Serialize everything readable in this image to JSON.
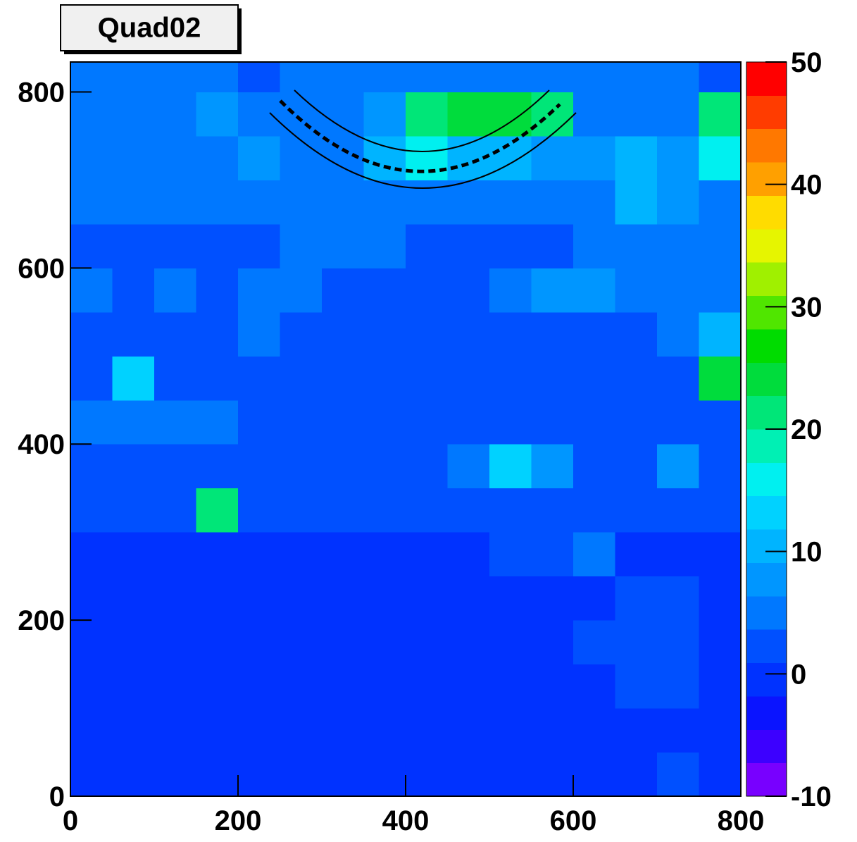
{
  "chart_data": {
    "type": "heatmap",
    "title": "Quad02",
    "xbins": [
      0,
      50,
      100,
      150,
      200,
      250,
      300,
      350,
      400,
      450,
      500,
      550,
      600,
      650,
      700,
      750,
      800
    ],
    "ybins": [
      0,
      50,
      100,
      150,
      200,
      250,
      300,
      350,
      400,
      450,
      500,
      550,
      600,
      650,
      700,
      750,
      800,
      834
    ],
    "z": [
      [
        0,
        0,
        0,
        0,
        0,
        0,
        0,
        0,
        0,
        0,
        0,
        0,
        0,
        0,
        1,
        0
      ],
      [
        0,
        0,
        0,
        0,
        0,
        0,
        0,
        0,
        0,
        0,
        0,
        0,
        0,
        0,
        0,
        0
      ],
      [
        0,
        0,
        0,
        0,
        0,
        0,
        0,
        0,
        0,
        0,
        0,
        0,
        0,
        1,
        1,
        0
      ],
      [
        0,
        0,
        0,
        0,
        0,
        0,
        0,
        0,
        0,
        0,
        0,
        0,
        1,
        2,
        2,
        0
      ],
      [
        0,
        0,
        0,
        0,
        0,
        0,
        0,
        0,
        0,
        0,
        0,
        0,
        0,
        1,
        1,
        0
      ],
      [
        0,
        0,
        0,
        0,
        0,
        0,
        0,
        0,
        0,
        0,
        1,
        1,
        4,
        0,
        0,
        0
      ],
      [
        1,
        1,
        2,
        20,
        1,
        1,
        1,
        1,
        1,
        1,
        1,
        1,
        1,
        1,
        1,
        1
      ],
      [
        1,
        1,
        1,
        1,
        1,
        2,
        2,
        3,
        3,
        5,
        12,
        8,
        2,
        3,
        8,
        1
      ],
      [
        4,
        4,
        4,
        4,
        3,
        3,
        3,
        3,
        3,
        2,
        2,
        3,
        3,
        3,
        3,
        3
      ],
      [
        3,
        12,
        3,
        3,
        3,
        3,
        3,
        3,
        3,
        3,
        3,
        3,
        3,
        3,
        3,
        25
      ],
      [
        3,
        3,
        3,
        3,
        4,
        3,
        3,
        3,
        3,
        3,
        3,
        3,
        3,
        3,
        5,
        10
      ],
      [
        6,
        3,
        5,
        3,
        6,
        6,
        3,
        3,
        3,
        3,
        4,
        8,
        8,
        4,
        4,
        4
      ],
      [
        3,
        3,
        3,
        3,
        3,
        5,
        6,
        5,
        3,
        3,
        3,
        3,
        4,
        4,
        4,
        4
      ],
      [
        4,
        5,
        5,
        5,
        4,
        4,
        5,
        4,
        5,
        5,
        5,
        5,
        6,
        10,
        8,
        6
      ],
      [
        4,
        4,
        6,
        5,
        7,
        4,
        6,
        10,
        15,
        10,
        10,
        7,
        8,
        10,
        7,
        15
      ],
      [
        5,
        6,
        4,
        8,
        4,
        4,
        6,
        8,
        20,
        25,
        25,
        20,
        6,
        4,
        5,
        20
      ],
      [
        4,
        6,
        4,
        4,
        1,
        5,
        5,
        5,
        5,
        6,
        6,
        5,
        5,
        4,
        4,
        1
      ]
    ],
    "xlim": [
      0,
      800
    ],
    "ylim": [
      0,
      834
    ],
    "zlim": [
      -10,
      50
    ],
    "xticks": [
      0,
      200,
      400,
      600,
      800
    ],
    "yticks": [
      0,
      200,
      400,
      600,
      800
    ],
    "zticks": [
      -10,
      0,
      10,
      20,
      30,
      40,
      50
    ],
    "palette": [
      "#7800ff",
      "#3c00ff",
      "#0a14ff",
      "#0032ff",
      "#0050ff",
      "#0078ff",
      "#0096ff",
      "#00b4ff",
      "#00d2ff",
      "#00f0f0",
      "#00f0b4",
      "#00e678",
      "#00dc3c",
      "#00dc00",
      "#50e600",
      "#a0f000",
      "#e6f500",
      "#ffdc00",
      "#ffa000",
      "#ff7800",
      "#ff3c00",
      "#ff0000"
    ]
  }
}
